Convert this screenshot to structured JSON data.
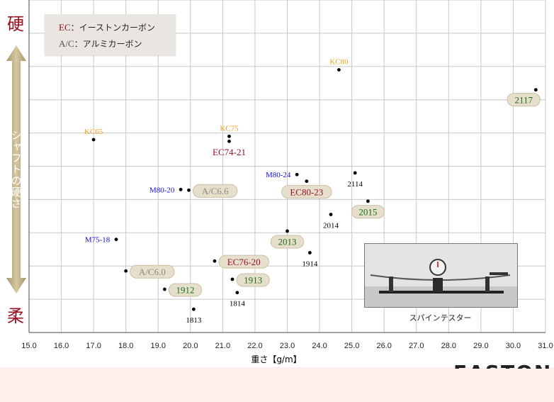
{
  "side": {
    "stiff_label": "硬",
    "soft_label": "柔",
    "axis_title": "シャフトの硬さ"
  },
  "legend": {
    "line1_abbr": "EC",
    "line1_desc": "：イーストンカーボン",
    "line2_abbr": "A/C",
    "line2_desc": "：アルミカーボン"
  },
  "photo": {
    "caption": "スパインテスター"
  },
  "footer": {
    "logo_text": "EASTON"
  },
  "colors": {
    "kc": "#f0a020",
    "ec": "#9a1020",
    "m": "#1010e0",
    "plain": "#000000",
    "green": "#1a6e1a",
    "ac": "#888888",
    "pill": "#e6dfcc"
  },
  "chart_data": {
    "type": "scatter",
    "title": "",
    "xlabel": "重さ【g/m】",
    "ylabel": "シャフトの硬さ",
    "xlim": [
      15.0,
      31.0
    ],
    "ylim": [
      0,
      10
    ],
    "x_ticks": [
      "15.0",
      "16.0",
      "17.0",
      "18.0",
      "19.0",
      "20.0",
      "21.0",
      "22.0",
      "23.0",
      "24.0",
      "25.0",
      "26.0",
      "27.0",
      "28.0",
      "29.0",
      "30.0",
      "31.0"
    ],
    "grid": true,
    "legend_position": "top-left",
    "points": [
      {
        "label": "KC80",
        "x": 24.6,
        "y": 7.9,
        "style": "kc",
        "anchor": "above"
      },
      {
        "label": "2117",
        "x": 30.7,
        "y": 7.3,
        "style": "green_pill",
        "anchor": "below-left"
      },
      {
        "label": "KC65",
        "x": 17.0,
        "y": 5.8,
        "style": "kc",
        "anchor": "above"
      },
      {
        "label": "KC75",
        "x": 21.2,
        "y": 5.9,
        "style": "kc",
        "anchor": "above"
      },
      {
        "label": "EC74-21",
        "x": 21.2,
        "y": 5.75,
        "style": "ec",
        "anchor": "below"
      },
      {
        "label": "M80-24",
        "x": 23.3,
        "y": 4.75,
        "style": "m",
        "anchor": "left"
      },
      {
        "label": "2114",
        "x": 25.1,
        "y": 4.8,
        "style": "plain",
        "anchor": "below"
      },
      {
        "label": "EC80-23",
        "x": 23.6,
        "y": 4.55,
        "style": "ec_pill",
        "anchor": "below"
      },
      {
        "label": "M80-20",
        "x": 19.7,
        "y": 4.3,
        "style": "m",
        "anchor": "left"
      },
      {
        "label": "A/C6.6",
        "x": 19.95,
        "y": 4.28,
        "style": "ac_pill",
        "anchor": "right"
      },
      {
        "label": "2015",
        "x": 25.5,
        "y": 3.95,
        "style": "green_pill",
        "anchor": "below"
      },
      {
        "label": "2014",
        "x": 24.35,
        "y": 3.55,
        "style": "plain",
        "anchor": "below"
      },
      {
        "label": "2013",
        "x": 23.0,
        "y": 3.05,
        "style": "green_pill",
        "anchor": "below"
      },
      {
        "label": "M75-18",
        "x": 17.7,
        "y": 2.8,
        "style": "m",
        "anchor": "left"
      },
      {
        "label": "1914",
        "x": 23.7,
        "y": 2.4,
        "style": "plain",
        "anchor": "below"
      },
      {
        "label": "EC76-20",
        "x": 20.75,
        "y": 2.15,
        "style": "ec_pill",
        "anchor": "right"
      },
      {
        "label": "A/C6.0",
        "x": 18.0,
        "y": 1.85,
        "style": "ac_pill",
        "anchor": "right"
      },
      {
        "label": "1913",
        "x": 21.3,
        "y": 1.6,
        "style": "green_pill",
        "anchor": "right"
      },
      {
        "label": "1912",
        "x": 19.2,
        "y": 1.3,
        "style": "green_pill",
        "anchor": "right"
      },
      {
        "label": "1814",
        "x": 21.45,
        "y": 1.2,
        "style": "plain",
        "anchor": "below"
      },
      {
        "label": "1813",
        "x": 20.1,
        "y": 0.7,
        "style": "plain",
        "anchor": "below"
      }
    ]
  }
}
